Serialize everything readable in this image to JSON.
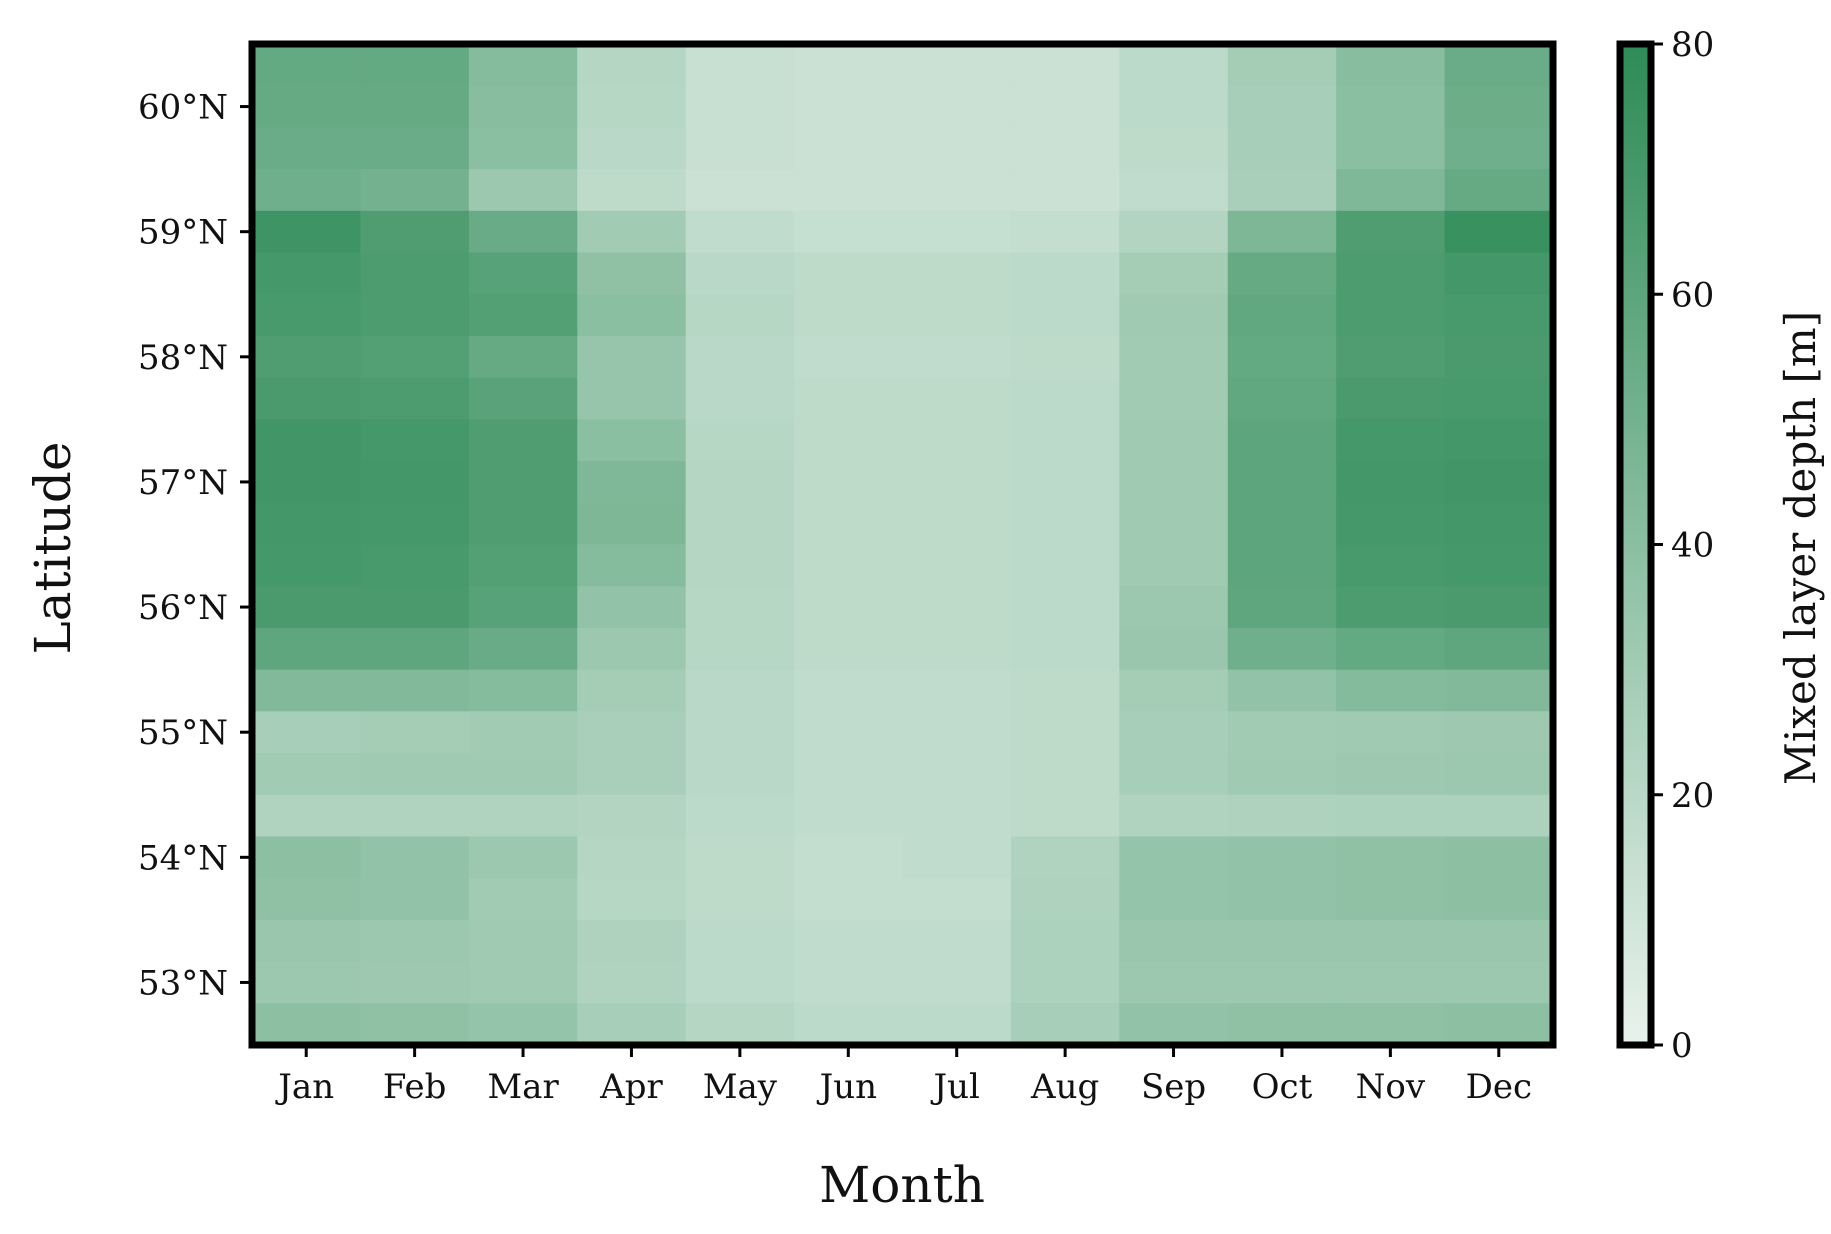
{
  "chart_data": {
    "type": "heatmap",
    "xlabel": "Month",
    "ylabel": "Latitude",
    "colorbar_label": "Mixed layer depth [m]",
    "colorbar_range": [
      0,
      80
    ],
    "colorbar_ticks": [
      "0",
      "20",
      "40",
      "60",
      "80"
    ],
    "colormap": {
      "low": "#e8f2ec",
      "high": "#2e8b57"
    },
    "x_categories": [
      "Jan",
      "Feb",
      "Mar",
      "Apr",
      "May",
      "Jun",
      "Jul",
      "Aug",
      "Sep",
      "Oct",
      "Nov",
      "Dec"
    ],
    "ylim": [
      52.5,
      60.5
    ],
    "y_ticks": [
      {
        "value": 53,
        "label": "53°N"
      },
      {
        "value": 54,
        "label": "54°N"
      },
      {
        "value": 55,
        "label": "55°N"
      },
      {
        "value": 56,
        "label": "56°N"
      },
      {
        "value": 57,
        "label": "57°N"
      },
      {
        "value": 58,
        "label": "58°N"
      },
      {
        "value": 59,
        "label": "59°N"
      },
      {
        "value": 60,
        "label": "60°N"
      }
    ],
    "rows_lat_centers": [
      60.33,
      60.0,
      59.67,
      59.33,
      59.0,
      58.67,
      58.33,
      58.0,
      57.67,
      57.33,
      57.0,
      56.67,
      56.33,
      56.0,
      55.67,
      55.33,
      55.0,
      54.67,
      54.33,
      54.0,
      53.67,
      53.33,
      53.0,
      52.67
    ],
    "values": [
      [
        57,
        57,
        42,
        22,
        14,
        13,
        13,
        13,
        19,
        29,
        41,
        54
      ],
      [
        56,
        56,
        41,
        21,
        14,
        13,
        13,
        13,
        19,
        28,
        40,
        53
      ],
      [
        54,
        54,
        40,
        20,
        14,
        13,
        13,
        13,
        18,
        28,
        40,
        52
      ],
      [
        52,
        50,
        33,
        18,
        13,
        13,
        13,
        13,
        17,
        27,
        45,
        56
      ],
      [
        73,
        66,
        55,
        30,
        17,
        15,
        15,
        16,
        23,
        46,
        66,
        75
      ],
      [
        70,
        67,
        62,
        38,
        20,
        18,
        18,
        19,
        29,
        56,
        67,
        71
      ],
      [
        69,
        67,
        64,
        40,
        21,
        18,
        18,
        19,
        31,
        58,
        67,
        69
      ],
      [
        66,
        64,
        56,
        35,
        20,
        17,
        17,
        18,
        30,
        57,
        66,
        68
      ],
      [
        68,
        67,
        61,
        35,
        20,
        18,
        18,
        19,
        30,
        58,
        68,
        69
      ],
      [
        72,
        70,
        66,
        40,
        21,
        18,
        18,
        19,
        31,
        60,
        70,
        71
      ],
      [
        72,
        71,
        66,
        45,
        22,
        18,
        18,
        19,
        31,
        60,
        71,
        72
      ],
      [
        71,
        70,
        66,
        46,
        22,
        18,
        18,
        19,
        31,
        60,
        70,
        71
      ],
      [
        70,
        69,
        64,
        42,
        22,
        18,
        18,
        19,
        31,
        60,
        69,
        70
      ],
      [
        68,
        68,
        62,
        37,
        21,
        18,
        18,
        19,
        33,
        59,
        67,
        68
      ],
      [
        59,
        59,
        55,
        33,
        21,
        18,
        18,
        19,
        34,
        52,
        57,
        59
      ],
      [
        44,
        44,
        42,
        29,
        20,
        17,
        17,
        18,
        29,
        37,
        43,
        44
      ],
      [
        28,
        29,
        30,
        27,
        20,
        17,
        17,
        18,
        28,
        30,
        31,
        32
      ],
      [
        30,
        31,
        31,
        27,
        20,
        17,
        17,
        18,
        28,
        31,
        32,
        33
      ],
      [
        24,
        24,
        24,
        23,
        19,
        17,
        17,
        18,
        24,
        25,
        26,
        26
      ],
      [
        39,
        37,
        33,
        22,
        18,
        16,
        17,
        24,
        36,
        37,
        38,
        39
      ],
      [
        38,
        37,
        30,
        21,
        18,
        16,
        16,
        25,
        36,
        37,
        38,
        39
      ],
      [
        34,
        33,
        31,
        25,
        19,
        17,
        17,
        26,
        34,
        34,
        34,
        34
      ],
      [
        33,
        32,
        31,
        24,
        19,
        17,
        17,
        26,
        33,
        33,
        33,
        33
      ],
      [
        39,
        38,
        36,
        28,
        22,
        19,
        19,
        28,
        37,
        38,
        38,
        39
      ]
    ]
  }
}
